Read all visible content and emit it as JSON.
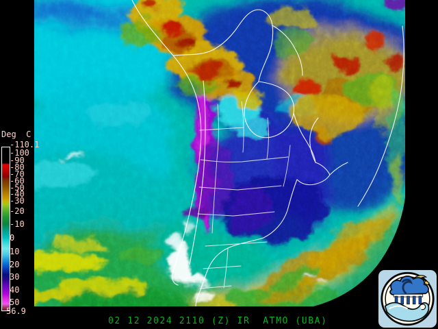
{
  "window": {
    "background_color": "#000000"
  },
  "scale": {
    "unit_label": "Deg  C",
    "ticks": [
      "-110.1",
      "-100",
      "-90",
      "-80",
      "-70",
      "-60",
      "-50",
      "-40",
      "-30",
      "-20",
      "-10",
      "0",
      "10",
      "20",
      "30",
      "40",
      "50",
      "56.9"
    ],
    "tick_text_color": "#ffd2c8",
    "bar_gradient_top_to_bottom": [
      "#000000",
      "#e10000",
      "#8b0000",
      "#8b5200",
      "#c79500",
      "#c9b400",
      "#9fc81e",
      "#53b02e",
      "#1e9632",
      "#00a08c",
      "#00bcbc",
      "#74e8e8",
      "#1e96dc",
      "#0a64d2",
      "#0a32b4",
      "#06107e",
      "#5a06b6",
      "#8206ce",
      "#b406dc",
      "#df2ce0",
      "#ef55ef",
      "#641432"
    ]
  },
  "footer": {
    "timestamp_line": "02 12 2024 2110 (Z) IR  ATMO (UBA)",
    "text_color": "#00b41e"
  },
  "satellite": {
    "palette": {
      "ocean_cloud_teal": "#00b2a6",
      "cold_navy": "#0c2da2",
      "very_cold_purple": "#9600cd",
      "convective_red": "#bb1200",
      "warm_gold": "#d9bb00",
      "border_lines": "#ffffff"
    }
  },
  "logo": {
    "background_color": "#b9d7e6",
    "elements": [
      "cloud-icon",
      "rain-icon",
      "sun-icon",
      "wave-icon"
    ]
  }
}
